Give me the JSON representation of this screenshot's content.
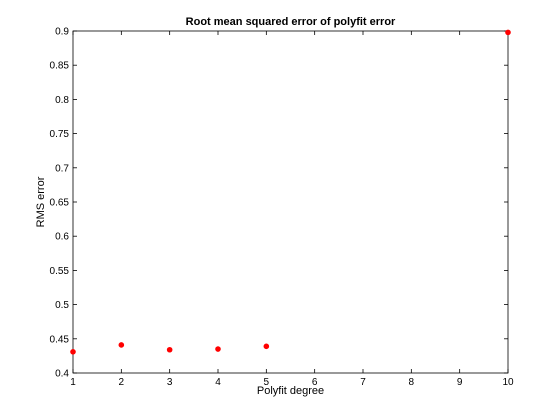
{
  "chart_data": {
    "type": "scatter",
    "title": "Root mean squared error of polyfit error",
    "xlabel": "Polyfit degree",
    "ylabel": "RMS error",
    "xlim": [
      1,
      10
    ],
    "ylim": [
      0.4,
      0.9
    ],
    "xticks": [
      "1",
      "2",
      "3",
      "4",
      "5",
      "6",
      "7",
      "8",
      "9",
      "10"
    ],
    "yticks": [
      "0.4",
      "0.45",
      "0.5",
      "0.55",
      "0.6",
      "0.65",
      "0.7",
      "0.75",
      "0.8",
      "0.85",
      "0.9"
    ],
    "grid": false,
    "series": [
      {
        "color": "#ff0000",
        "x": [
          1,
          2,
          3,
          4,
          5,
          10
        ],
        "y": [
          0.431,
          0.441,
          0.434,
          0.435,
          0.439,
          0.898
        ]
      }
    ]
  }
}
